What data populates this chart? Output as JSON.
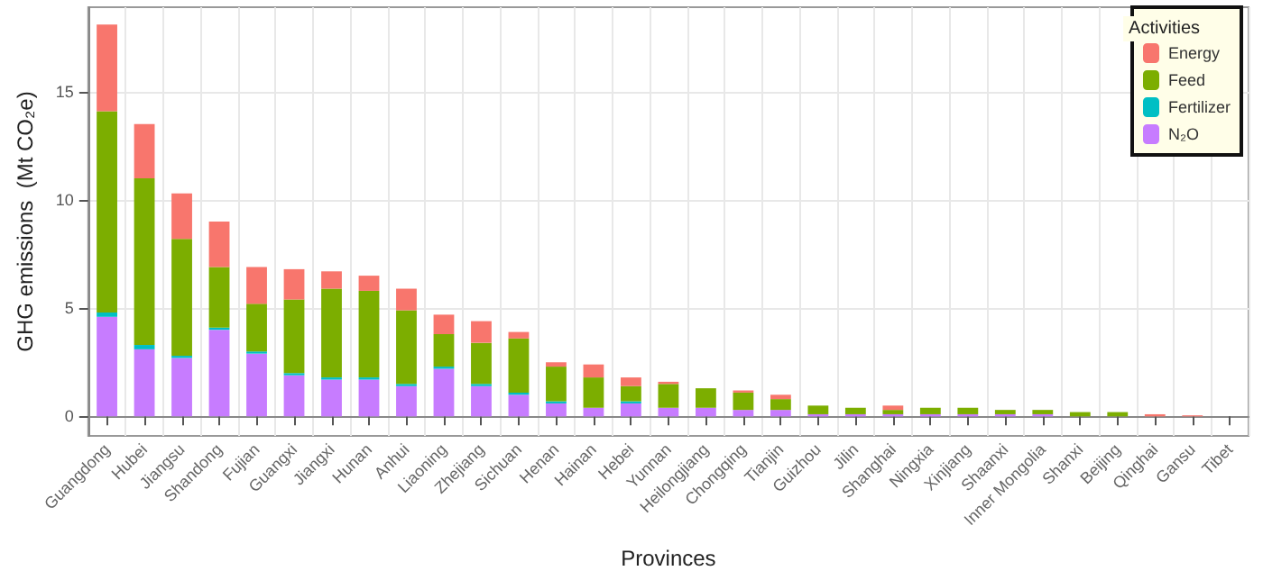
{
  "chart_data": {
    "type": "bar",
    "stacked": true,
    "xlabel": "Provinces",
    "ylabel": "GHG emissions  (Mt CO₂e)",
    "categories": [
      "Guangdong",
      "Hubei",
      "Jiangsu",
      "Shandong",
      "Fujian",
      "Guangxi",
      "Jiangxi",
      "Hunan",
      "Anhui",
      "Liaoning",
      "Zhejiang",
      "Sichuan",
      "Henan",
      "Hainan",
      "Hebei",
      "Yunnan",
      "Heilongjiang",
      "Chongqing",
      "Tianjin",
      "Guizhou",
      "Jilin",
      "Shanghai",
      "Ningxia",
      "Xinjiang",
      "Shaanxi",
      "Inner Mongolia",
      "Shanxi",
      "Beijing",
      "Qinghai",
      "Gansu",
      "Tibet"
    ],
    "series": [
      {
        "name": "N₂O",
        "color": "#c77cff",
        "values": [
          4.6,
          3.1,
          2.7,
          4.0,
          2.9,
          1.9,
          1.7,
          1.7,
          1.4,
          2.2,
          1.4,
          1.0,
          0.6,
          0.4,
          0.6,
          0.4,
          0.4,
          0.3,
          0.3,
          0.1,
          0.1,
          0.1,
          0.1,
          0.1,
          0.1,
          0.1,
          0,
          0,
          0,
          0,
          0
        ]
      },
      {
        "name": "Fertilizer",
        "color": "#00bfc4",
        "values": [
          0.2,
          0.2,
          0.1,
          0.1,
          0.1,
          0.1,
          0.1,
          0.1,
          0.1,
          0.1,
          0.1,
          0.1,
          0.1,
          0,
          0.1,
          0,
          0,
          0,
          0,
          0,
          0,
          0,
          0,
          0,
          0,
          0,
          0,
          0,
          0,
          0,
          0
        ]
      },
      {
        "name": "Feed",
        "color": "#7cae00",
        "values": [
          9.3,
          7.7,
          5.4,
          2.8,
          2.2,
          3.4,
          4.1,
          4.0,
          3.4,
          1.5,
          1.9,
          2.5,
          1.6,
          1.4,
          0.7,
          1.1,
          0.9,
          0.8,
          0.5,
          0.4,
          0.3,
          0.2,
          0.3,
          0.3,
          0.2,
          0.2,
          0.2,
          0.2,
          0,
          0,
          0
        ]
      },
      {
        "name": "Energy",
        "color": "#f8766d",
        "values": [
          4.0,
          2.5,
          2.1,
          2.1,
          1.7,
          1.4,
          0.8,
          0.7,
          1.0,
          0.9,
          1.0,
          0.3,
          0.2,
          0.6,
          0.4,
          0.1,
          0,
          0.1,
          0.2,
          0,
          0,
          0.2,
          0,
          0,
          0,
          0,
          0,
          0,
          0.1,
          0.05,
          0
        ]
      }
    ],
    "ylim": [
      -0.9,
      18.9
    ],
    "yticks": [
      0,
      5,
      10,
      15
    ],
    "grid": true,
    "legend": "top right",
    "legend_title": "Activities"
  }
}
